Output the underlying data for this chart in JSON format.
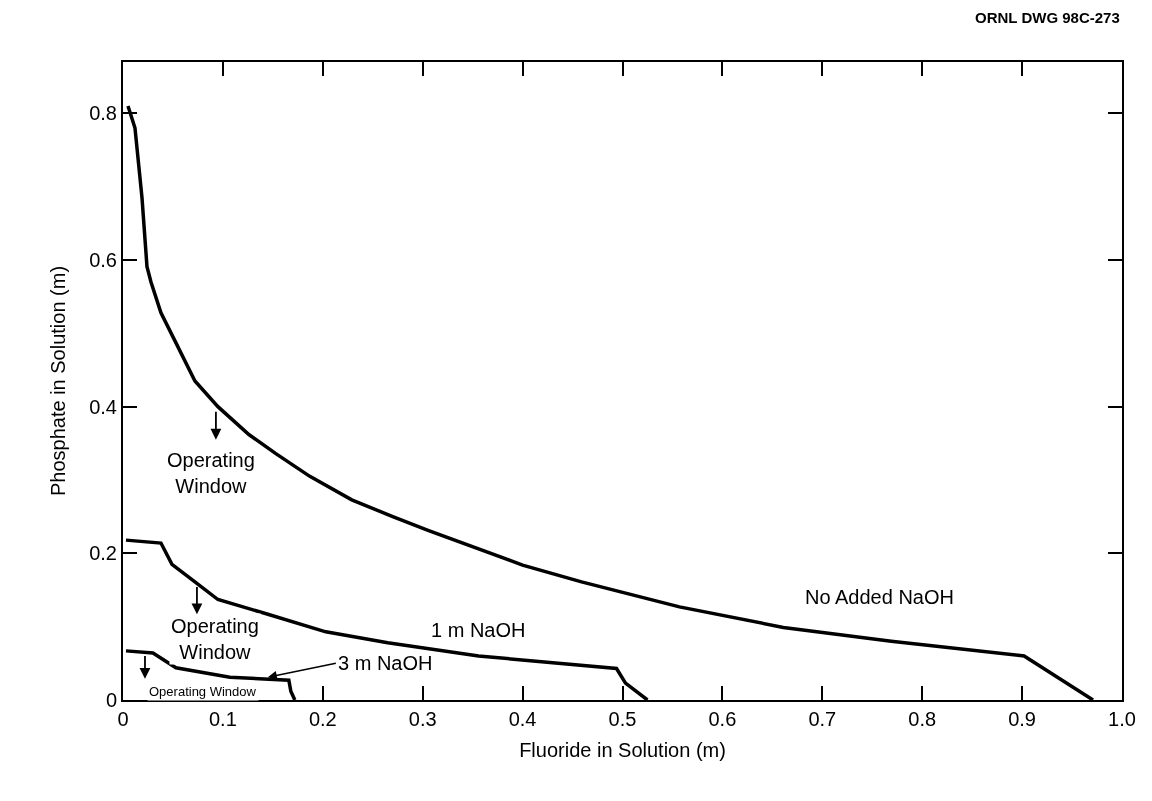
{
  "chart_data": {
    "type": "line",
    "xlabel": "Fluoride in Solution (m)",
    "ylabel": "Phosphate in Solution (m)",
    "xlim": [
      0,
      1.0
    ],
    "ylim": [
      0,
      0.87
    ],
    "xticks": [
      {
        "value": 0,
        "label": "0"
      },
      0.1,
      0.2,
      0.3,
      0.4,
      0.5,
      0.6,
      0.7,
      0.8,
      0.9,
      {
        "value": 1.0,
        "label": "1.0"
      }
    ],
    "yticks": [
      {
        "value": 0,
        "label": "0"
      },
      0.2,
      0.4,
      0.6,
      0.8
    ],
    "marker": "none",
    "line_style": "solid",
    "series": [
      {
        "color": "#000000",
        "x": [
          0.005,
          0.012,
          0.019,
          0.024,
          0.028,
          0.038,
          0.053,
          0.072,
          0.095,
          0.126,
          0.153,
          0.187,
          0.229,
          0.27,
          0.306,
          0.4,
          0.459,
          0.557,
          0.661,
          0.769,
          0.902,
          0.971
        ],
        "values": [
          0.81,
          0.78,
          0.685,
          0.591,
          0.57,
          0.528,
          0.487,
          0.435,
          0.4,
          0.362,
          0.336,
          0.305,
          0.273,
          0.25,
          0.231,
          0.184,
          0.161,
          0.127,
          0.099,
          0.08,
          0.06,
          0
        ]
      },
      {
        "color": "#000000",
        "x": [
          0.003,
          0.038,
          0.049,
          0.072,
          0.095,
          0.145,
          0.203,
          0.265,
          0.356,
          0.494,
          0.503,
          0.525
        ],
        "values": [
          0.218,
          0.214,
          0.185,
          0.161,
          0.137,
          0.117,
          0.093,
          0.078,
          0.06,
          0.043,
          0.023,
          0
        ]
      },
      {
        "color": "#000000",
        "x": [
          0.003,
          0.03,
          0.053,
          0.107,
          0.166,
          0.168,
          0.172
        ],
        "values": [
          0.067,
          0.064,
          0.044,
          0.031,
          0.027,
          0.012,
          0
        ]
      }
    ],
    "annotations": [
      "Operating\nWindow",
      "Operating\nWindow",
      "Operating Window",
      "No Added NaOH",
      "1 m NaOH",
      {
        "text": "3 m NaOH",
        "x": 0.145,
        "y": 0.031
      },
      "ORNL DWG 98C-273"
    ]
  }
}
